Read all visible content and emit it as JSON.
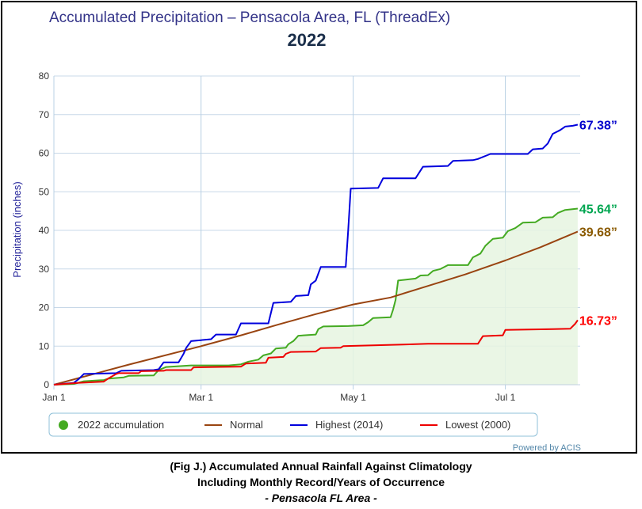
{
  "chart_data": {
    "type": "line",
    "title": "Accumulated Precipitation – Pensacola Area, FL (ThreadEx)",
    "subtitle": "2022",
    "ylabel": "Precipitation (inches)",
    "xlabel": "",
    "ylim": [
      0,
      80
    ],
    "yticks": [
      "0",
      "10",
      "20",
      "30",
      "40",
      "50",
      "60",
      "70",
      "80"
    ],
    "xticks": [
      {
        "label": "Jan 1",
        "day": 0
      },
      {
        "label": "Mar 1",
        "day": 59
      },
      {
        "label": "May 1",
        "day": 120
      },
      {
        "label": "Jul 1",
        "day": 181
      }
    ],
    "xlim": [
      0,
      211
    ],
    "grid": true,
    "legend_position": "bottom",
    "series": [
      {
        "name": "2022 accumulation",
        "key": "acc2022",
        "color": "#44aa22",
        "fill": true,
        "points": [
          [
            0,
            0
          ],
          [
            8,
            0.2
          ],
          [
            12,
            0.9
          ],
          [
            20,
            1.2
          ],
          [
            22,
            1.6
          ],
          [
            28,
            1.9
          ],
          [
            30,
            2.3
          ],
          [
            40,
            2.4
          ],
          [
            42,
            3.8
          ],
          [
            45,
            4.6
          ],
          [
            50,
            4.8
          ],
          [
            55,
            5.0
          ],
          [
            70,
            5.0
          ],
          [
            75,
            5.3
          ],
          [
            78,
            6.0
          ],
          [
            82,
            6.5
          ],
          [
            84,
            7.6
          ],
          [
            87,
            8.1
          ],
          [
            89,
            9.4
          ],
          [
            93,
            9.6
          ],
          [
            94,
            10.5
          ],
          [
            96,
            11.3
          ],
          [
            98,
            12.7
          ],
          [
            105,
            13.0
          ],
          [
            106,
            14.4
          ],
          [
            108,
            15.1
          ],
          [
            118,
            15.2
          ],
          [
            124,
            15.4
          ],
          [
            126,
            16.2
          ],
          [
            128,
            17.3
          ],
          [
            135,
            17.5
          ],
          [
            136,
            19.5
          ],
          [
            137,
            22.0
          ],
          [
            138,
            27.0
          ],
          [
            145,
            27.5
          ],
          [
            147,
            28.3
          ],
          [
            150,
            28.4
          ],
          [
            152,
            29.5
          ],
          [
            155,
            30.0
          ],
          [
            158,
            31.0
          ],
          [
            166,
            31.0
          ],
          [
            168,
            33.0
          ],
          [
            171,
            34.0
          ],
          [
            173,
            36.0
          ],
          [
            176,
            37.8
          ],
          [
            180,
            38.1
          ],
          [
            182,
            39.8
          ],
          [
            185,
            40.6
          ],
          [
            188,
            42.0
          ],
          [
            193,
            42.1
          ],
          [
            196,
            43.3
          ],
          [
            200,
            43.4
          ],
          [
            202,
            44.5
          ],
          [
            205,
            45.3
          ],
          [
            210,
            45.64
          ]
        ],
        "end_label": "45.64”",
        "label_color": "#00a651"
      },
      {
        "name": "Normal",
        "key": "normal",
        "color": "#994411",
        "fill": false,
        "points": [
          [
            0,
            0
          ],
          [
            30,
            5.2
          ],
          [
            59,
            10.0
          ],
          [
            75,
            12.8
          ],
          [
            90,
            15.6
          ],
          [
            105,
            18.3
          ],
          [
            120,
            20.8
          ],
          [
            135,
            22.6
          ],
          [
            150,
            25.6
          ],
          [
            165,
            28.6
          ],
          [
            181,
            32.2
          ],
          [
            195,
            35.6
          ],
          [
            210,
            39.68
          ]
        ],
        "end_label": "39.68”",
        "label_color": "#8a5a00"
      },
      {
        "name": "Highest (2014)",
        "key": "highest",
        "color": "#0000dd",
        "fill": false,
        "points": [
          [
            0,
            0
          ],
          [
            8,
            0.5
          ],
          [
            10,
            1.5
          ],
          [
            12,
            2.8
          ],
          [
            25,
            3.0
          ],
          [
            27,
            3.6
          ],
          [
            40,
            3.8
          ],
          [
            42,
            4.0
          ],
          [
            44,
            5.8
          ],
          [
            50,
            5.8
          ],
          [
            52,
            8.0
          ],
          [
            53,
            9.5
          ],
          [
            55,
            11.3
          ],
          [
            63,
            11.8
          ],
          [
            65,
            13.0
          ],
          [
            73,
            13.0
          ],
          [
            75,
            15.9
          ],
          [
            86,
            15.9
          ],
          [
            88,
            21.2
          ],
          [
            95,
            21.5
          ],
          [
            97,
            23.0
          ],
          [
            102,
            23.2
          ],
          [
            103,
            26.0
          ],
          [
            105,
            27.0
          ],
          [
            107,
            30.5
          ],
          [
            117,
            30.5
          ],
          [
            118,
            40.0
          ],
          [
            119,
            50.8
          ],
          [
            130,
            51.0
          ],
          [
            132,
            53.5
          ],
          [
            145,
            53.5
          ],
          [
            148,
            56.5
          ],
          [
            158,
            56.7
          ],
          [
            160,
            58.0
          ],
          [
            168,
            58.2
          ],
          [
            170,
            58.5
          ],
          [
            175,
            59.8
          ],
          [
            190,
            59.8
          ],
          [
            192,
            61.0
          ],
          [
            196,
            61.2
          ],
          [
            198,
            62.5
          ],
          [
            200,
            65.0
          ],
          [
            203,
            66.0
          ],
          [
            205,
            66.9
          ],
          [
            208,
            67.1
          ],
          [
            210,
            67.38
          ]
        ],
        "end_label": "67.38”",
        "label_color": "#0000cc"
      },
      {
        "name": "Lowest (2000)",
        "key": "lowest",
        "color": "#ee0000",
        "fill": false,
        "points": [
          [
            0,
            0
          ],
          [
            10,
            0.5
          ],
          [
            20,
            0.8
          ],
          [
            22,
            1.7
          ],
          [
            25,
            2.8
          ],
          [
            26,
            3.0
          ],
          [
            34,
            3.0
          ],
          [
            35,
            3.5
          ],
          [
            44,
            3.6
          ],
          [
            45,
            3.8
          ],
          [
            55,
            3.8
          ],
          [
            56,
            4.5
          ],
          [
            75,
            4.7
          ],
          [
            77,
            5.5
          ],
          [
            85,
            5.7
          ],
          [
            86,
            7.0
          ],
          [
            92,
            7.2
          ],
          [
            93,
            8.0
          ],
          [
            95,
            8.5
          ],
          [
            105,
            8.6
          ],
          [
            107,
            9.5
          ],
          [
            115,
            9.6
          ],
          [
            116,
            10.0
          ],
          [
            128,
            10.2
          ],
          [
            140,
            10.4
          ],
          [
            150,
            10.6
          ],
          [
            170,
            10.6
          ],
          [
            172,
            12.6
          ],
          [
            180,
            12.8
          ],
          [
            181,
            14.2
          ],
          [
            200,
            14.4
          ],
          [
            207,
            14.5
          ],
          [
            209,
            15.8
          ],
          [
            210,
            16.73
          ]
        ],
        "end_label": "16.73”",
        "label_color": "#ff0000"
      }
    ],
    "credit": "Powered by ACIS"
  },
  "caption": {
    "line1": "(Fig J.) Accumulated Annual Rainfall Against  Climatology",
    "line2": "Including Monthly Record/Years of Occurrence",
    "line3": "- Pensacola FL Area -"
  }
}
